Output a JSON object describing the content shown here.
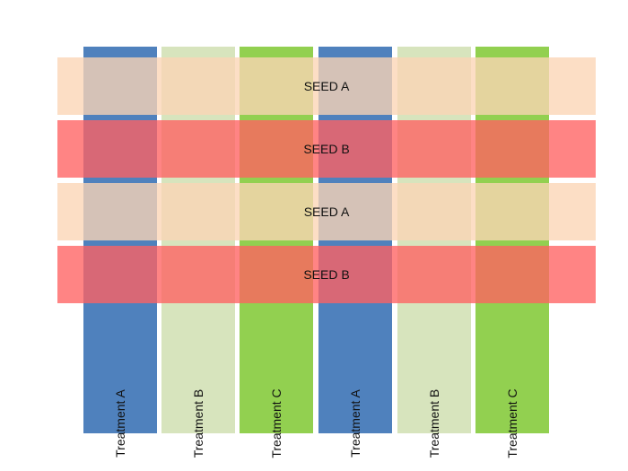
{
  "diagram": {
    "columns": [
      {
        "label": "Treatment A",
        "color": "#4f81bd"
      },
      {
        "label": "Treatment B",
        "color": "#d7e4bd"
      },
      {
        "label": "Treatment C",
        "color": "#92d050"
      },
      {
        "label": "Treatment A",
        "color": "#4f81bd"
      },
      {
        "label": "Treatment B",
        "color": "#d7e4bd"
      },
      {
        "label": "Treatment C",
        "color": "#92d050"
      }
    ],
    "rows": [
      {
        "label": "SEED A",
        "color": "#fbd5b5"
      },
      {
        "label": "SEED B",
        "color": "#ff6161"
      },
      {
        "label": "SEED A",
        "color": "#fbd5b5"
      },
      {
        "label": "SEED B",
        "color": "#ff6161"
      }
    ]
  }
}
